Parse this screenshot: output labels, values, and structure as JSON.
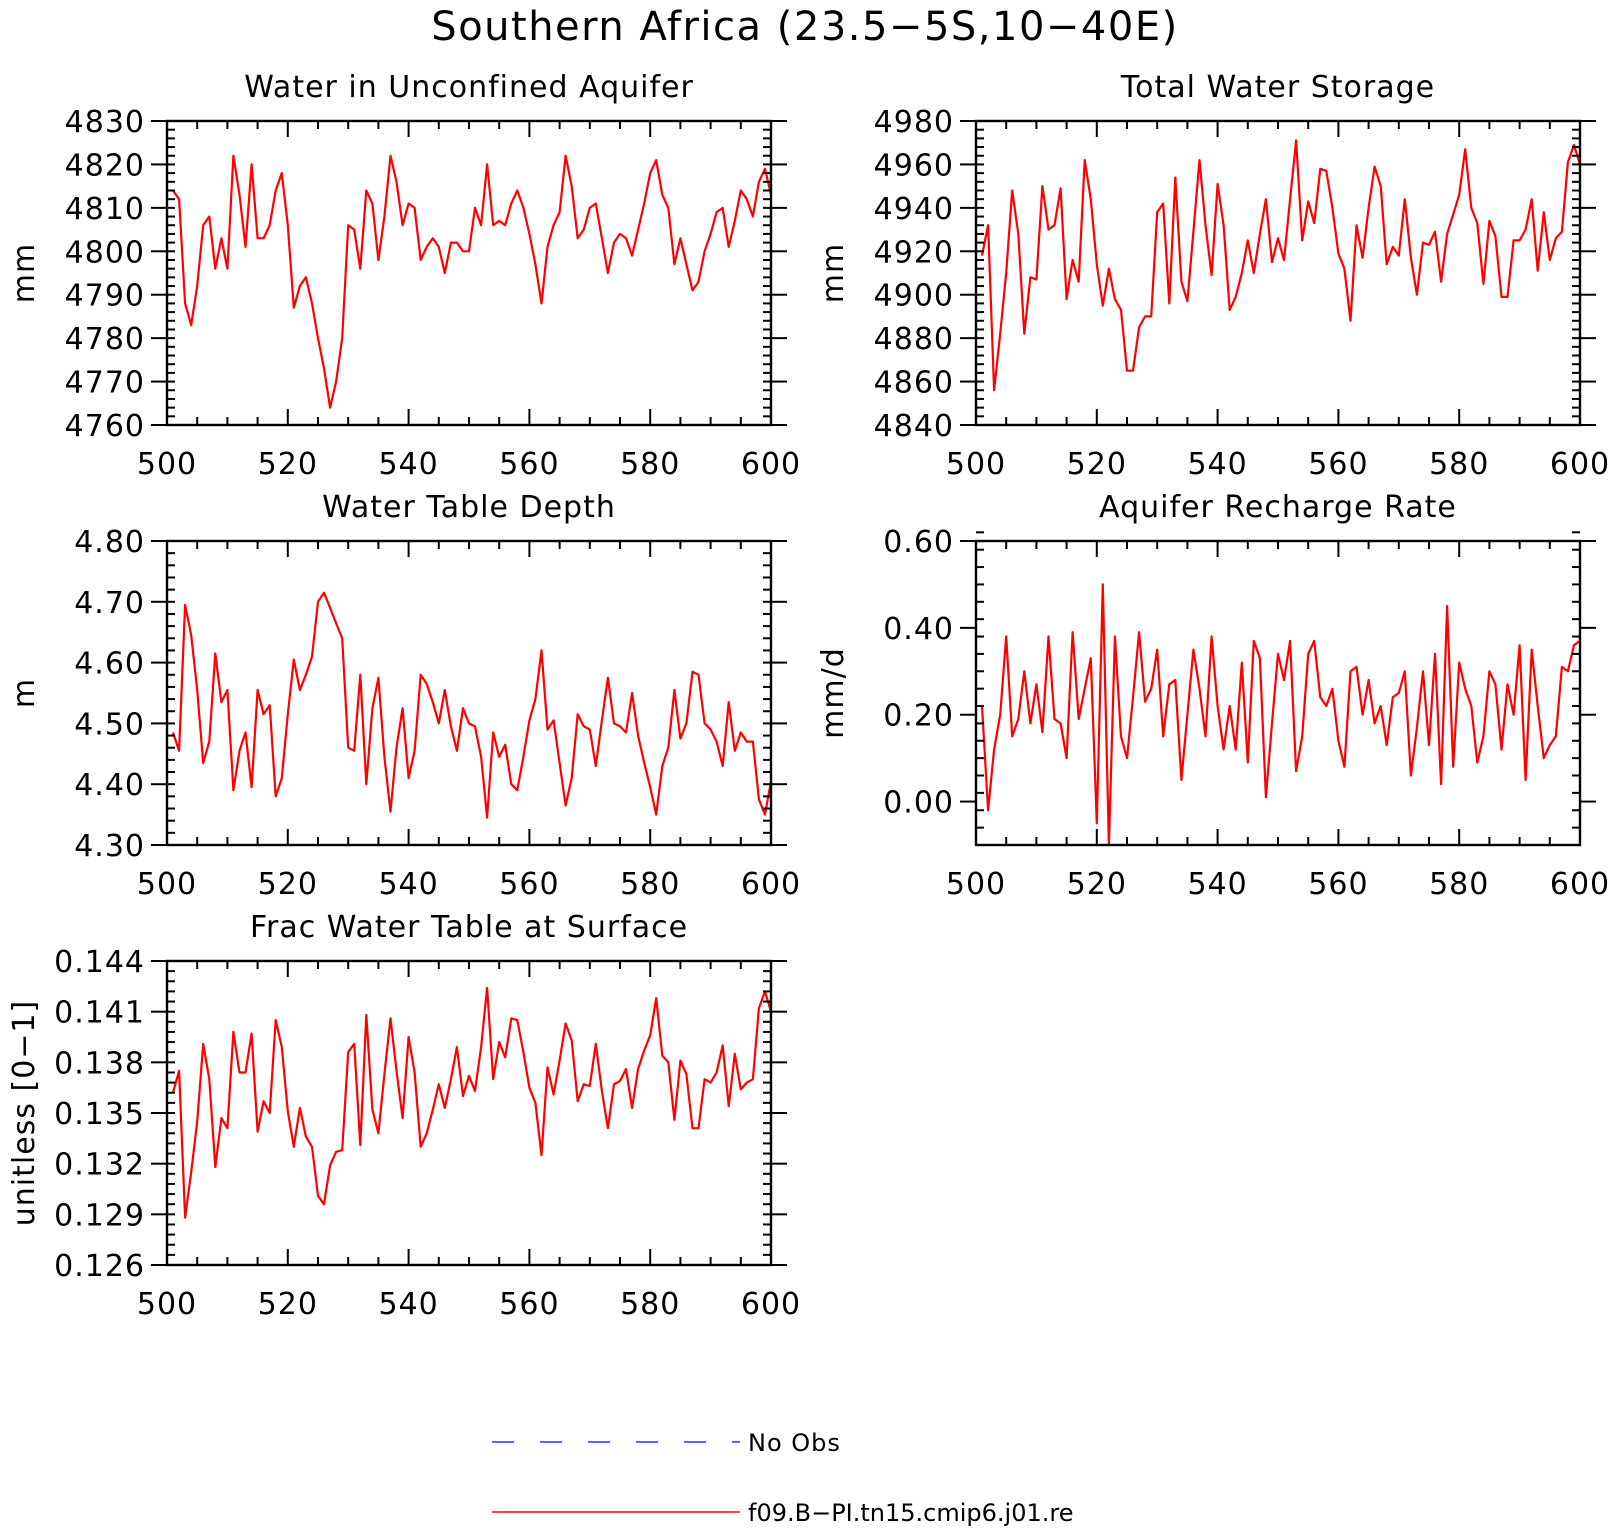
{
  "figure": {
    "title": "Southern Africa (23.5−5S,10−40E)"
  },
  "legend": {
    "placement": "bottom-center",
    "entries": [
      {
        "label": "No Obs",
        "color": "#2f2fff",
        "style": "dashed"
      },
      {
        "label": "f09.B−PI.tn15.cmip6.j01.re",
        "color": "#ff0000",
        "style": "solid"
      }
    ]
  },
  "chart_data": [
    {
      "type": "line",
      "title": "Water in Unconfined Aquifer",
      "xlabel": "",
      "ylabel": "mm",
      "xlim": [
        500,
        600
      ],
      "ylim": [
        4760,
        4830
      ],
      "xticks": [
        500,
        520,
        540,
        560,
        580,
        600
      ],
      "yticks": [
        4760,
        4770,
        4780,
        4790,
        4800,
        4810,
        4820,
        4830
      ],
      "ytick_labels": [
        "4760",
        "4770",
        "4780",
        "4790",
        "4800",
        "4810",
        "4820",
        "4830"
      ],
      "grid": false,
      "series": [
        {
          "name": "f09.B−PI.tn15.cmip6.j01.re",
          "color": "#ff0000",
          "x_start": 501,
          "values": [
            4814,
            4812,
            4788,
            4783,
            4792,
            4806,
            4808,
            4796,
            4803,
            4796,
            4822,
            4813,
            4801,
            4820,
            4803,
            4803,
            4806,
            4814,
            4818,
            4806,
            4787,
            4792,
            4794,
            4788,
            4780,
            4773,
            4764,
            4770,
            4780,
            4806,
            4805,
            4796,
            4814,
            4811,
            4798,
            4808,
            4822,
            4816,
            4806,
            4811,
            4810,
            4798,
            4801,
            4803,
            4801,
            4795,
            4802,
            4802,
            4800,
            4800,
            4810,
            4806,
            4820,
            4806,
            4807,
            4806,
            4811,
            4814,
            4810,
            4804,
            4797,
            4788,
            4801,
            4806,
            4809,
            4822,
            4815,
            4803,
            4805,
            4810,
            4811,
            4803,
            4795,
            4802,
            4804,
            4803,
            4799,
            4805,
            4811,
            4818,
            4821,
            4813,
            4810,
            4797,
            4803,
            4797,
            4791,
            4793,
            4800,
            4804,
            4809,
            4810,
            4801,
            4807,
            4814,
            4812,
            4808,
            4816,
            4819,
            4813
          ]
        }
      ]
    },
    {
      "type": "line",
      "title": "Total Water Storage",
      "xlabel": "",
      "ylabel": "mm",
      "xlim": [
        500,
        600
      ],
      "ylim": [
        4840,
        4980
      ],
      "xticks": [
        500,
        520,
        540,
        560,
        580,
        600
      ],
      "yticks": [
        4840,
        4860,
        4880,
        4900,
        4920,
        4940,
        4960,
        4980
      ],
      "ytick_labels": [
        "4840",
        "4860",
        "4880",
        "4900",
        "4920",
        "4940",
        "4960",
        "4980"
      ],
      "grid": false,
      "series": [
        {
          "name": "f09.B−PI.tn15.cmip6.j01.re",
          "color": "#ff0000",
          "x_start": 501,
          "values": [
            4918,
            4932,
            4856,
            4882,
            4910,
            4948,
            4928,
            4882,
            4908,
            4907,
            4950,
            4930,
            4932,
            4949,
            4898,
            4916,
            4906,
            4962,
            4944,
            4914,
            4895,
            4912,
            4898,
            4893,
            4865,
            4865,
            4885,
            4890,
            4890,
            4938,
            4942,
            4896,
            4954,
            4906,
            4897,
            4929,
            4962,
            4932,
            4909,
            4951,
            4932,
            4893,
            4899,
            4910,
            4925,
            4910,
            4928,
            4944,
            4915,
            4926,
            4916,
            4944,
            4971,
            4925,
            4943,
            4933,
            4958,
            4957,
            4940,
            4919,
            4912,
            4888,
            4932,
            4917,
            4940,
            4959,
            4950,
            4914,
            4922,
            4918,
            4944,
            4917,
            4900,
            4924,
            4923,
            4929,
            4906,
            4928,
            4937,
            4946,
            4967,
            4940,
            4933,
            4905,
            4934,
            4927,
            4899,
            4899,
            4925,
            4925,
            4930,
            4944,
            4911,
            4938,
            4916,
            4926,
            4929,
            4961,
            4969,
            4960
          ]
        }
      ]
    },
    {
      "type": "line",
      "title": "Water Table Depth",
      "xlabel": "",
      "ylabel": "m",
      "xlim": [
        500,
        600
      ],
      "ylim": [
        4.3,
        4.8
      ],
      "xticks": [
        500,
        520,
        540,
        560,
        580,
        600
      ],
      "yticks": [
        4.3,
        4.4,
        4.5,
        4.6,
        4.7,
        4.8
      ],
      "ytick_labels": [
        "4.30",
        "4.40",
        "4.50",
        "4.60",
        "4.70",
        "4.80"
      ],
      "grid": false,
      "series": [
        {
          "name": "f09.B−PI.tn15.cmip6.j01.re",
          "color": "#ff0000",
          "x_start": 501,
          "values": [
            4.485,
            4.455,
            4.695,
            4.645,
            4.555,
            4.435,
            4.47,
            4.615,
            4.535,
            4.555,
            4.39,
            4.455,
            4.485,
            4.395,
            4.555,
            4.515,
            4.53,
            4.38,
            4.41,
            4.515,
            4.605,
            4.555,
            4.58,
            4.61,
            4.7,
            4.715,
            4.69,
            4.665,
            4.64,
            4.46,
            4.455,
            4.58,
            4.4,
            4.525,
            4.575,
            4.445,
            4.355,
            4.46,
            4.525,
            4.41,
            4.455,
            4.58,
            4.565,
            4.535,
            4.5,
            4.555,
            4.495,
            4.455,
            4.525,
            4.5,
            4.495,
            4.445,
            4.345,
            4.485,
            4.445,
            4.465,
            4.4,
            4.39,
            4.445,
            4.505,
            4.54,
            4.62,
            4.49,
            4.505,
            4.435,
            4.365,
            4.41,
            4.515,
            4.495,
            4.49,
            4.43,
            4.505,
            4.575,
            4.5,
            4.495,
            4.485,
            4.55,
            4.48,
            4.435,
            4.395,
            4.35,
            4.43,
            4.46,
            4.555,
            4.475,
            4.5,
            4.585,
            4.58,
            4.5,
            4.49,
            4.47,
            4.43,
            4.535,
            4.455,
            4.485,
            4.47,
            4.47,
            4.375,
            4.35,
            4.405
          ]
        }
      ]
    },
    {
      "type": "line",
      "title": "Aquifer Recharge Rate",
      "xlabel": "",
      "ylabel": "mm/d",
      "xlim": [
        500,
        600
      ],
      "ylim": [
        -0.1,
        0.6
      ],
      "xticks": [
        500,
        520,
        540,
        560,
        580,
        600
      ],
      "yticks": [
        0.0,
        0.2,
        0.4,
        0.6
      ],
      "ytick_labels": [
        "0.00",
        "0.20",
        "0.40",
        "0.60"
      ],
      "grid": false,
      "series": [
        {
          "name": "f09.B−PI.tn15.cmip6.j01.re",
          "color": "#ff0000",
          "x_start": 501,
          "values": [
            0.22,
            -0.02,
            0.12,
            0.2,
            0.38,
            0.15,
            0.19,
            0.3,
            0.18,
            0.27,
            0.16,
            0.38,
            0.19,
            0.18,
            0.1,
            0.39,
            0.19,
            0.26,
            0.33,
            -0.05,
            0.5,
            -0.1,
            0.38,
            0.15,
            0.1,
            0.24,
            0.39,
            0.23,
            0.26,
            0.35,
            0.15,
            0.27,
            0.28,
            0.05,
            0.2,
            0.35,
            0.26,
            0.15,
            0.38,
            0.22,
            0.12,
            0.22,
            0.12,
            0.32,
            0.09,
            0.37,
            0.33,
            0.01,
            0.18,
            0.34,
            0.28,
            0.37,
            0.07,
            0.15,
            0.34,
            0.37,
            0.24,
            0.22,
            0.26,
            0.14,
            0.08,
            0.3,
            0.31,
            0.2,
            0.28,
            0.18,
            0.22,
            0.13,
            0.24,
            0.25,
            0.3,
            0.06,
            0.17,
            0.3,
            0.13,
            0.34,
            0.04,
            0.45,
            0.08,
            0.32,
            0.26,
            0.22,
            0.09,
            0.15,
            0.3,
            0.27,
            0.12,
            0.27,
            0.2,
            0.36,
            0.05,
            0.35,
            0.22,
            0.1,
            0.13,
            0.15,
            0.31,
            0.3,
            0.36,
            0.37
          ]
        }
      ]
    },
    {
      "type": "line",
      "title": "Frac Water Table at Surface",
      "xlabel": "",
      "ylabel": "unitless [0−1]",
      "xlim": [
        500,
        600
      ],
      "ylim": [
        0.126,
        0.144
      ],
      "xticks": [
        500,
        520,
        540,
        560,
        580,
        600
      ],
      "yticks": [
        0.126,
        0.129,
        0.132,
        0.135,
        0.138,
        0.141,
        0.144
      ],
      "ytick_labels": [
        "0.126",
        "0.129",
        "0.132",
        "0.135",
        "0.138",
        "0.141",
        "0.144"
      ],
      "grid": false,
      "series": [
        {
          "name": "f09.B−PI.tn15.cmip6.j01.re",
          "color": "#ff0000",
          "x_start": 501,
          "values": [
            0.1362,
            0.1375,
            0.1288,
            0.1315,
            0.1345,
            0.1391,
            0.137,
            0.1318,
            0.1347,
            0.1341,
            0.1398,
            0.1374,
            0.1374,
            0.1397,
            0.1339,
            0.1357,
            0.135,
            0.1405,
            0.1389,
            0.1351,
            0.133,
            0.1353,
            0.1336,
            0.133,
            0.1301,
            0.1296,
            0.1319,
            0.1327,
            0.1328,
            0.1386,
            0.1391,
            0.1331,
            0.1408,
            0.1352,
            0.1338,
            0.1373,
            0.1406,
            0.1375,
            0.1347,
            0.1395,
            0.1374,
            0.133,
            0.1338,
            0.1352,
            0.1367,
            0.1353,
            0.137,
            0.1389,
            0.136,
            0.1372,
            0.1363,
            0.1389,
            0.1424,
            0.137,
            0.1392,
            0.1383,
            0.1406,
            0.1405,
            0.1386,
            0.1365,
            0.1356,
            0.1325,
            0.1377,
            0.1361,
            0.1381,
            0.1403,
            0.1393,
            0.1357,
            0.1367,
            0.1366,
            0.1391,
            0.1363,
            0.1341,
            0.1367,
            0.1369,
            0.1376,
            0.1353,
            0.1376,
            0.1387,
            0.1396,
            0.1418,
            0.1384,
            0.138,
            0.1346,
            0.1381,
            0.1373,
            0.1341,
            0.1341,
            0.137,
            0.1368,
            0.1374,
            0.139,
            0.1354,
            0.1385,
            0.1364,
            0.1368,
            0.137,
            0.1412,
            0.1422,
            0.141
          ]
        }
      ]
    }
  ]
}
